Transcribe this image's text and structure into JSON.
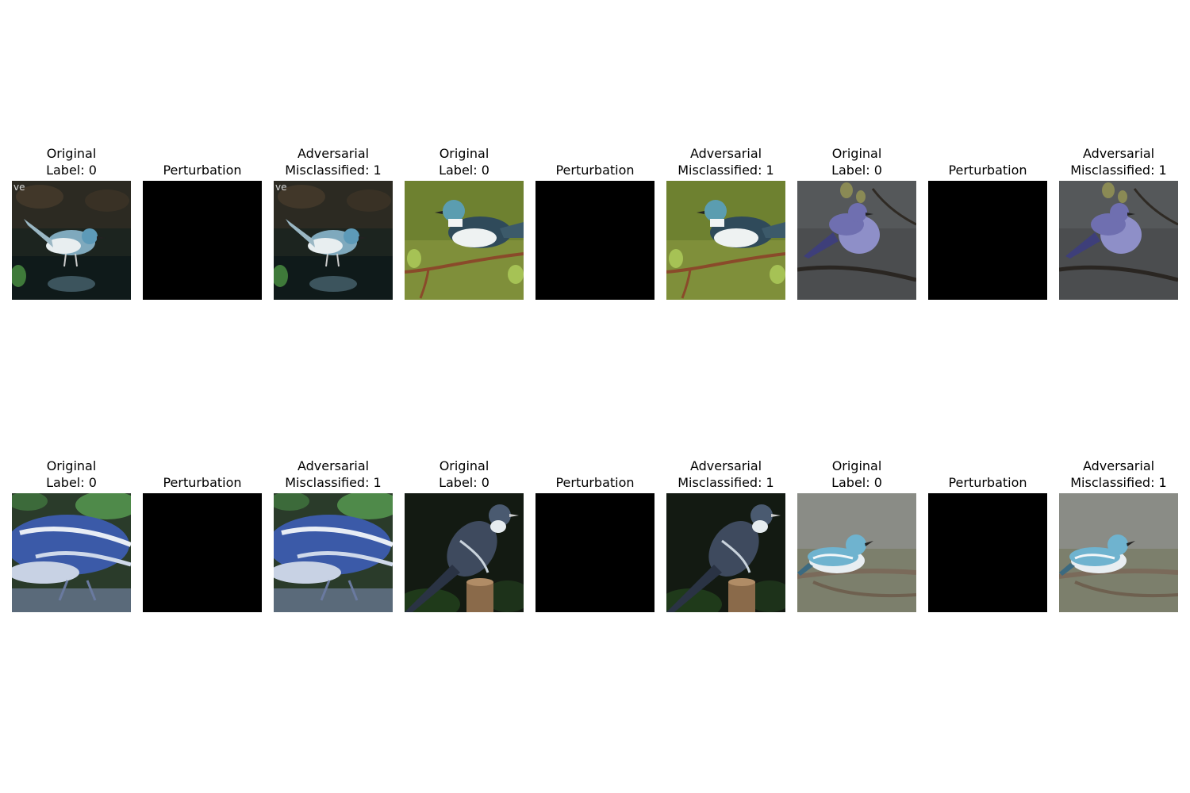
{
  "rows": [
    {
      "panels": [
        {
          "title": "Original\nLabel: 0",
          "kind": "photo",
          "scene": "water",
          "bird": "#7fa9bd"
        },
        {
          "title": "Perturbation",
          "kind": "perturbation"
        },
        {
          "title": "Adversarial\nMisclassified: 1",
          "kind": "photo",
          "scene": "water",
          "bird": "#7fa9bd"
        },
        {
          "title": "Original\nLabel: 0",
          "kind": "photo",
          "scene": "green-branch",
          "bird": "#5b9db0"
        },
        {
          "title": "Perturbation",
          "kind": "perturbation"
        },
        {
          "title": "Adversarial\nMisclassified: 1",
          "kind": "photo",
          "scene": "green-branch",
          "bird": "#5b9db0"
        },
        {
          "title": "Original\nLabel: 0",
          "kind": "photo",
          "scene": "gray-branch",
          "bird": "#6f6fb0"
        },
        {
          "title": "Perturbation",
          "kind": "perturbation"
        },
        {
          "title": "Adversarial\nMisclassified: 1",
          "kind": "photo",
          "scene": "gray-branch",
          "bird": "#6f6fb0"
        }
      ]
    },
    {
      "panels": [
        {
          "title": "Original\nLabel: 0",
          "kind": "photo",
          "scene": "closeup",
          "bird": "#3b5aa8"
        },
        {
          "title": "Perturbation",
          "kind": "perturbation"
        },
        {
          "title": "Adversarial\nMisclassified: 1",
          "kind": "photo",
          "scene": "closeup",
          "bird": "#3b5aa8"
        },
        {
          "title": "Original\nLabel: 0",
          "kind": "photo",
          "scene": "dark-post",
          "bird": "#3e4a5e"
        },
        {
          "title": "Perturbation",
          "kind": "perturbation"
        },
        {
          "title": "Adversarial\nMisclassified: 1",
          "kind": "photo",
          "scene": "dark-post",
          "bird": "#3e4a5e"
        },
        {
          "title": "Original\nLabel: 0",
          "kind": "photo",
          "scene": "soft-branch",
          "bird": "#6fb3cf"
        },
        {
          "title": "Perturbation",
          "kind": "perturbation"
        },
        {
          "title": "Adversarial\nMisclassified: 1",
          "kind": "photo",
          "scene": "soft-branch",
          "bird": "#6fb3cf"
        }
      ]
    }
  ]
}
